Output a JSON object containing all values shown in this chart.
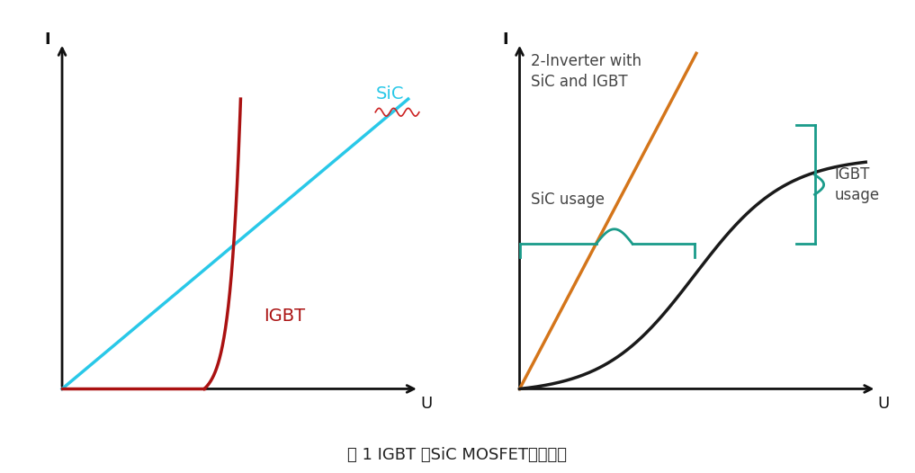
{
  "fig_width": 10.17,
  "fig_height": 5.26,
  "dpi": 100,
  "background_color": "#ffffff",
  "title": "图 1 IGBT 和SiC MOSFET导通特性",
  "title_fontsize": 13,
  "left_panel": {
    "SiC_color": "#29c8e8",
    "IGBT_color": "#aa1111",
    "wavy_color": "#cc2222",
    "SiC_label": "SiC",
    "IGBT_label": "IGBT",
    "axis_color": "#111111",
    "xlabel": "U",
    "ylabel": "I"
  },
  "right_panel": {
    "orange_color": "#d4751a",
    "black_curve_color": "#1a1a1a",
    "teal_color": "#1a9b8a",
    "text_color": "#444444",
    "xlabel": "U",
    "ylabel": "I",
    "label1": "2-Inverter with\nSiC and IGBT",
    "label2": "SiC usage",
    "label3": "IGBT\nusage"
  }
}
